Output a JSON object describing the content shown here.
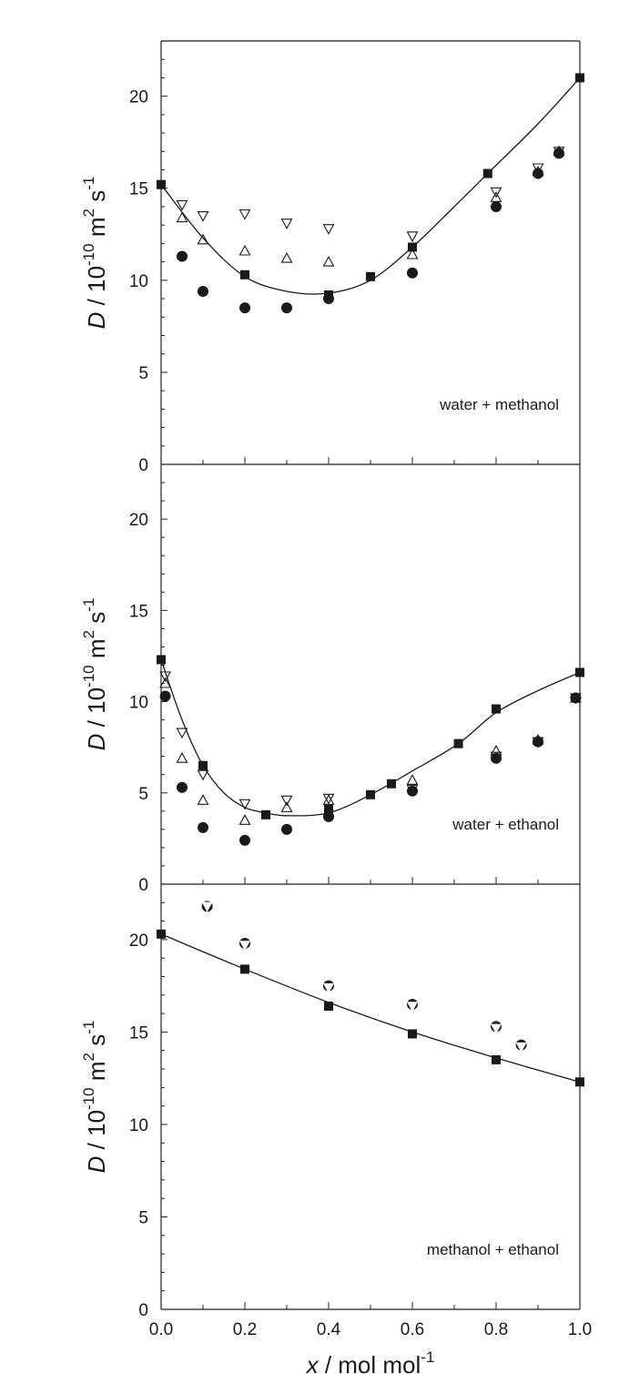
{
  "chart_data": [
    {
      "type": "scatter",
      "annotation": "water + methanol",
      "ylabel": {
        "var": "D",
        "unit": "/ 10",
        "exp1": "-10",
        "mid": " m",
        "exp2": "2",
        "tail": " s",
        "exp3": "-1"
      },
      "xlim": [
        0,
        1
      ],
      "ylim": [
        0,
        23
      ],
      "yticks": [
        "0",
        "5",
        "10",
        "15",
        "20"
      ],
      "series": [
        {
          "marker": "square",
          "x": [
            0.0,
            0.2,
            0.4,
            0.5,
            0.6,
            0.78,
            1.0
          ],
          "y": [
            15.2,
            10.3,
            9.2,
            10.2,
            11.8,
            15.8,
            21.0
          ]
        },
        {
          "marker": "circle",
          "x": [
            0.05,
            0.1,
            0.2,
            0.3,
            0.4,
            0.6,
            0.8,
            0.9,
            0.95
          ],
          "y": [
            11.3,
            9.4,
            8.5,
            8.5,
            9.0,
            10.4,
            14.0,
            15.8,
            16.9
          ]
        },
        {
          "marker": "triangle-up",
          "x": [
            0.05,
            0.1,
            0.2,
            0.3,
            0.4,
            0.6,
            0.8,
            0.9,
            0.95
          ],
          "y": [
            13.4,
            12.2,
            11.6,
            11.2,
            11.0,
            11.4,
            14.5,
            15.9,
            17.0
          ]
        },
        {
          "marker": "triangle-down",
          "x": [
            0.05,
            0.1,
            0.2,
            0.3,
            0.4,
            0.6,
            0.8,
            0.9,
            0.95
          ],
          "y": [
            14.1,
            13.5,
            13.6,
            13.1,
            12.8,
            12.4,
            14.8,
            16.1,
            17.0
          ]
        }
      ],
      "fit": {
        "x": [
          0.0,
          0.1,
          0.2,
          0.3,
          0.4,
          0.5,
          0.6,
          0.7,
          0.78,
          0.9,
          1.0
        ],
        "y": [
          15.2,
          12.3,
          10.2,
          9.4,
          9.3,
          10.0,
          11.8,
          14.0,
          15.8,
          18.5,
          21.0
        ]
      }
    },
    {
      "type": "scatter",
      "annotation": "water + ethanol",
      "ylabel": {
        "var": "D",
        "unit": "/ 10",
        "exp1": "-10",
        "mid": " m",
        "exp2": "2",
        "tail": " s",
        "exp3": "-1"
      },
      "xlim": [
        0,
        1
      ],
      "ylim": [
        0,
        23
      ],
      "yticks": [
        "0",
        "5",
        "10",
        "15",
        "20"
      ],
      "series": [
        {
          "marker": "square",
          "x": [
            0.0,
            0.1,
            0.25,
            0.4,
            0.5,
            0.55,
            0.71,
            0.8,
            1.0
          ],
          "y": [
            12.3,
            6.5,
            3.8,
            4.1,
            4.9,
            5.5,
            7.7,
            9.6,
            11.6
          ]
        },
        {
          "marker": "circle",
          "x": [
            0.01,
            0.05,
            0.1,
            0.2,
            0.3,
            0.4,
            0.6,
            0.8,
            0.9,
            0.99
          ],
          "y": [
            10.3,
            5.3,
            3.1,
            2.4,
            3.0,
            3.7,
            5.1,
            6.9,
            7.8,
            10.2
          ]
        },
        {
          "marker": "triangle-up",
          "x": [
            0.01,
            0.05,
            0.1,
            0.2,
            0.3,
            0.4,
            0.6,
            0.8,
            0.9,
            0.99
          ],
          "y": [
            11.0,
            6.9,
            4.6,
            3.5,
            4.2,
            4.6,
            5.7,
            7.3,
            7.9,
            10.2
          ]
        },
        {
          "marker": "triangle-down",
          "x": [
            0.01,
            0.05,
            0.1,
            0.2,
            0.3,
            0.4,
            0.6,
            0.8,
            0.9,
            0.99
          ],
          "y": [
            11.4,
            8.3,
            6.0,
            4.4,
            4.6,
            4.7,
            5.2,
            7.0,
            7.8,
            10.2
          ]
        }
      ],
      "fit": {
        "x": [
          0.0,
          0.05,
          0.1,
          0.15,
          0.2,
          0.25,
          0.3,
          0.4,
          0.5,
          0.6,
          0.71,
          0.8,
          0.9,
          1.0
        ],
        "y": [
          12.3,
          9.0,
          6.5,
          5.0,
          4.2,
          3.9,
          3.75,
          3.9,
          4.9,
          6.2,
          7.7,
          9.4,
          10.6,
          11.6
        ]
      }
    },
    {
      "type": "scatter",
      "annotation": "methanol + ethanol",
      "ylabel": {
        "var": "D",
        "unit": "/ 10",
        "exp1": "-10",
        "mid": " m",
        "exp2": "2",
        "tail": " s",
        "exp3": "-1"
      },
      "xlim": [
        0,
        1
      ],
      "ylim": [
        0,
        23
      ],
      "yticks": [
        "0",
        "5",
        "10",
        "15",
        "20"
      ],
      "xticks": [
        "0.0",
        "0.2",
        "0.4",
        "0.6",
        "0.8",
        "1.0"
      ],
      "xlabel": {
        "var": "x",
        "unit": " / mol mol",
        "exp": "-1"
      },
      "series": [
        {
          "marker": "square",
          "x": [
            0.0,
            0.2,
            0.4,
            0.6,
            0.8,
            1.0
          ],
          "y": [
            20.3,
            18.4,
            16.4,
            14.9,
            13.5,
            12.3
          ]
        },
        {
          "marker": "circle",
          "x": [
            0.11,
            0.2,
            0.4,
            0.6,
            0.8,
            0.86
          ],
          "y": [
            21.8,
            19.8,
            17.5,
            16.5,
            15.3,
            14.3
          ]
        },
        {
          "marker": "triangle-down",
          "x": [
            0.11,
            0.2,
            0.4,
            0.6,
            0.8,
            0.86
          ],
          "y": [
            21.8,
            19.7,
            17.4,
            16.4,
            15.2,
            14.2
          ]
        }
      ],
      "fit": {
        "x": [
          0.0,
          0.2,
          0.4,
          0.6,
          0.8,
          1.0
        ],
        "y": [
          20.3,
          18.4,
          16.6,
          15.0,
          13.6,
          12.3
        ]
      }
    }
  ]
}
